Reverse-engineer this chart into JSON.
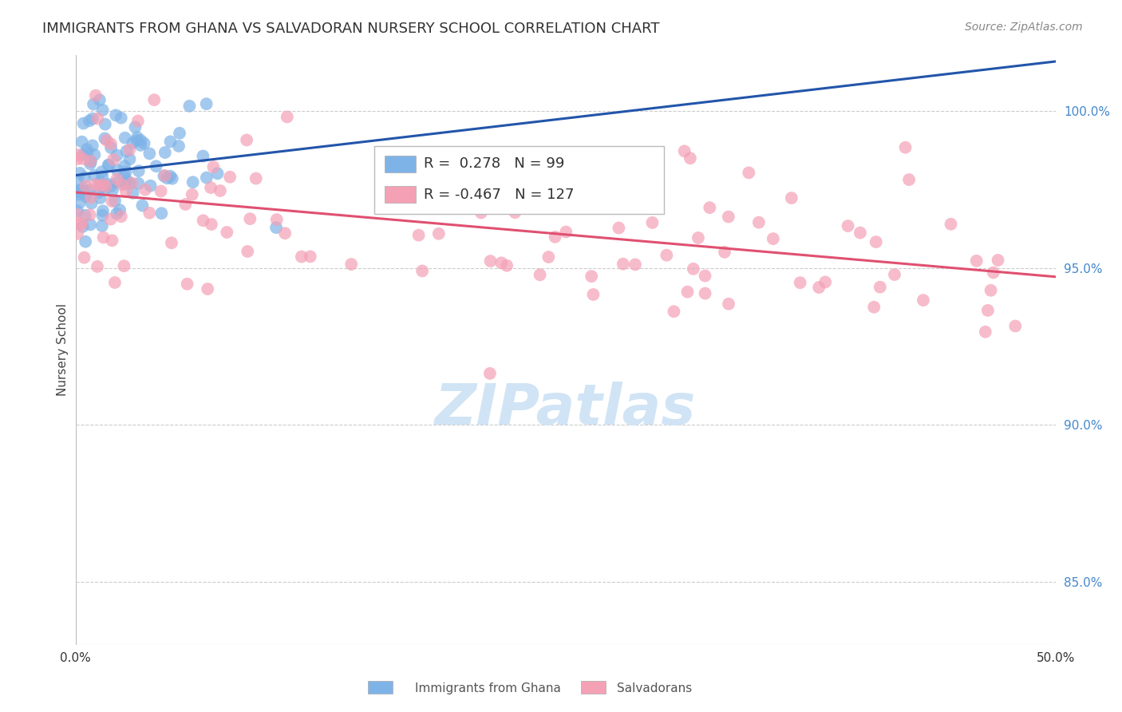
{
  "title": "IMMIGRANTS FROM GHANA VS SALVADORAN NURSERY SCHOOL CORRELATION CHART",
  "source": "Source: ZipAtlas.com",
  "ylabel": "Nursery School",
  "ytick_labels": [
    "100.0%",
    "95.0%",
    "90.0%",
    "85.0%"
  ],
  "ytick_values": [
    1.0,
    0.95,
    0.9,
    0.85
  ],
  "xlim": [
    0.0,
    0.5
  ],
  "ylim": [
    0.83,
    1.018
  ],
  "ghana_R": 0.278,
  "ghana_N": 99,
  "salvadoran_R": -0.467,
  "salvadoran_N": 127,
  "ghana_color": "#7EB3E8",
  "salvadoran_color": "#F4A0B5",
  "ghana_line_color": "#2255AA",
  "salvadoran_line_color": "#E05070",
  "background_color": "#ffffff",
  "grid_color": "#cccccc",
  "title_fontsize": 13,
  "axis_label_fontsize": 11,
  "tick_label_fontsize": 11,
  "legend_fontsize": 13,
  "source_fontsize": 10,
  "watermark_text": "ZIPatlas",
  "watermark_color": "#d0e4f5",
  "watermark_fontsize": 52,
  "ytick_color": "#4488CC",
  "xtick_color": "#333333"
}
